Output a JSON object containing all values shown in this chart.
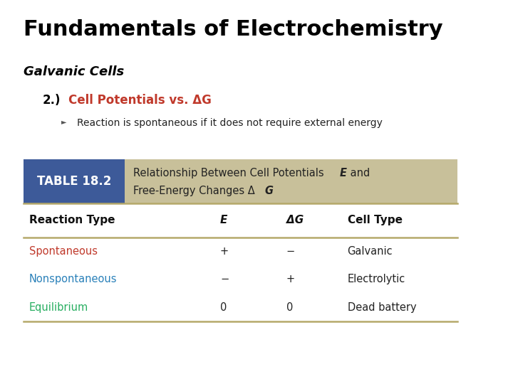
{
  "title": "Fundamentals of Electrochemistry",
  "subtitle": "Galvanic Cells",
  "section_number": "2.)",
  "section_title": "Cell Potentials vs. ΔG",
  "bullet": "Reaction is spontaneous if it does not require external energy",
  "table_label": "TABLE 18.2",
  "col_headers": [
    "Reaction Type",
    "E",
    "ΔG",
    "Cell Type"
  ],
  "rows": [
    [
      "Spontaneous",
      "+",
      "−",
      "Galvanic"
    ],
    [
      "Nonspontaneous",
      "−",
      "+",
      "Electrolytic"
    ],
    [
      "Equilibrium",
      "0",
      "0",
      "Dead battery"
    ]
  ],
  "row_colors": [
    "#c0392b",
    "#2980b9",
    "#27ae60"
  ],
  "bg_color": "#ffffff",
  "title_color": "#000000",
  "subtitle_color": "#000000",
  "section_title_color": "#c0392b",
  "table_label_bg": "#3d5a99",
  "table_label_fg": "#ffffff",
  "table_header_bg": "#c8c09a",
  "separator_color": "#b5a96a"
}
